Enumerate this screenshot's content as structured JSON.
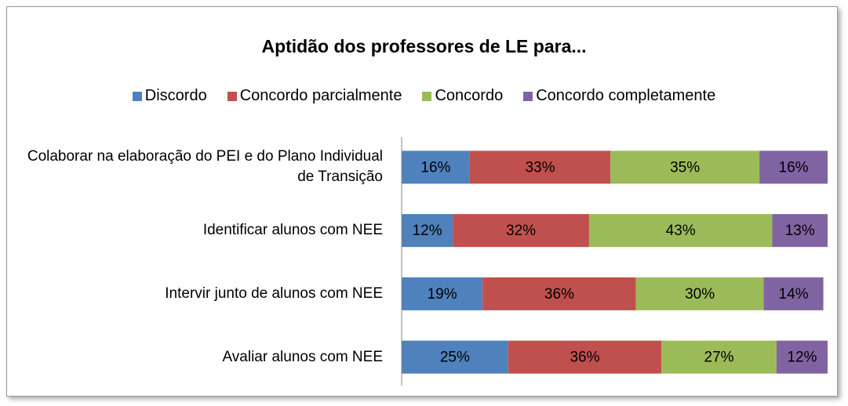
{
  "chart_data": {
    "type": "stacked_bar_horizontal",
    "title": "Aptidão dos professores de LE para...",
    "categories": [
      "Colaborar na elaboração do PEI e do Plano Individual de Transição",
      "Identificar alunos com NEE",
      "Intervir junto de alunos com NEE",
      "Avaliar alunos com NEE"
    ],
    "series": [
      {
        "name": "Discordo",
        "color": "#4f81bd",
        "values": [
          16,
          12,
          19,
          25
        ],
        "value_labels": [
          "16%",
          "12%",
          "19%",
          "25%"
        ]
      },
      {
        "name": "Concordo parcialmente",
        "color": "#c0504d",
        "values": [
          33,
          32,
          36,
          36
        ],
        "value_labels": [
          "33%",
          "32%",
          "36%",
          "36%"
        ]
      },
      {
        "name": "Concordo",
        "color": "#9bbb59",
        "values": [
          35,
          43,
          30,
          27
        ],
        "value_labels": [
          "35%",
          "43%",
          "30%",
          "27%"
        ]
      },
      {
        "name": "Concordo completamente",
        "color": "#8064a2",
        "values": [
          16,
          13,
          14,
          12
        ],
        "value_labels": [
          "16%",
          "13%",
          "14%",
          "12%"
        ]
      }
    ],
    "xlim": [
      0,
      100
    ],
    "legend": "top"
  }
}
